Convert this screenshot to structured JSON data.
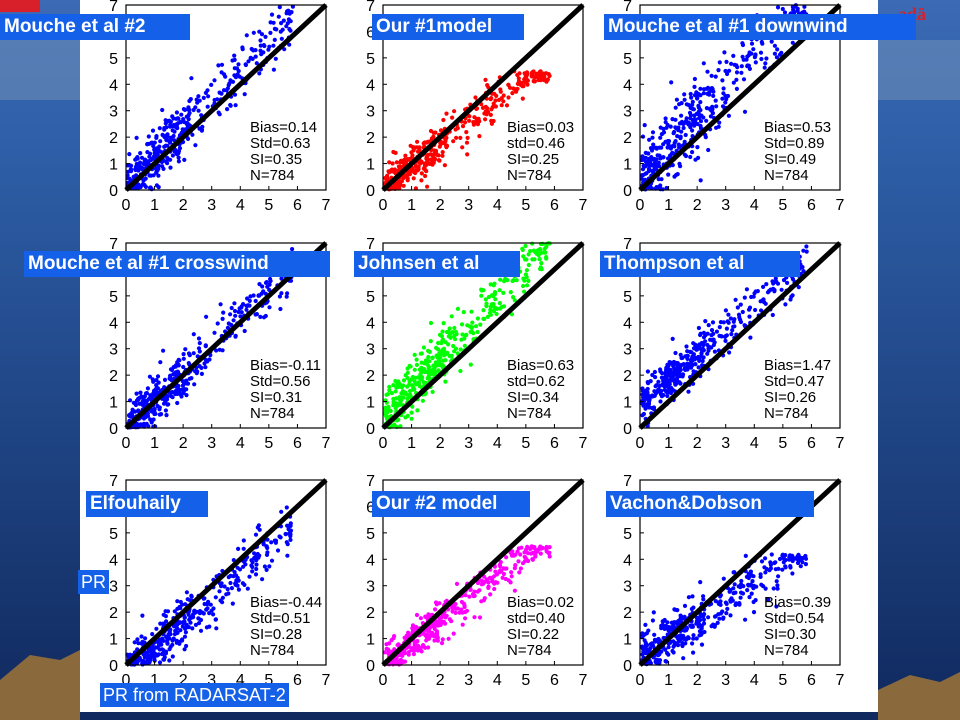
{
  "slide": {
    "colors": {
      "background_top": "#2e5fa8",
      "background_bottom": "#10295e",
      "land": "#8a6a3d",
      "panel": "#ffffff",
      "label_box": "#1560e8"
    },
    "partial_text_left": "PR",
    "xlabel_bottom": "PR from RADARSAT-2",
    "logo_fragment_right": "adä"
  },
  "chart_data": [
    {
      "type": "scatter",
      "title": "Mouche et al #2",
      "color": "#0000ff",
      "xlim": [
        0,
        7
      ],
      "ylim": [
        0,
        7
      ],
      "xticks": [
        "0",
        "1",
        "2",
        "3",
        "4",
        "5",
        "6",
        "7"
      ],
      "yticks": [
        "0",
        "1",
        "2",
        "3",
        "4",
        "5",
        "6",
        "7"
      ],
      "stats": [
        "Bias=0.14",
        "Std=0.63",
        "SI=0.35",
        "N=784"
      ],
      "bias": 0.14,
      "std": 0.63,
      "si": 0.35,
      "n": 784,
      "slope": 1.1,
      "yclip": 7
    },
    {
      "type": "scatter",
      "title": "Our #1model",
      "color": "#ff0000",
      "xlim": [
        0,
        7
      ],
      "ylim": [
        0,
        7
      ],
      "xticks": [
        "0",
        "1",
        "2",
        "3",
        "4",
        "5",
        "6",
        "7"
      ],
      "yticks": [
        "0",
        "1",
        "2",
        "3",
        "4",
        "5",
        "6",
        "7"
      ],
      "stats": [
        "Bias=0.03",
        "std=0.46",
        "SI=0.25",
        "N=784"
      ],
      "bias": 0.03,
      "std": 0.46,
      "si": 0.25,
      "n": 784,
      "slope": 0.88,
      "yclip": 4.5
    },
    {
      "type": "scatter",
      "title": "Mouche et al #1 downwind",
      "color": "#0000ff",
      "xlim": [
        0,
        7
      ],
      "ylim": [
        0,
        7
      ],
      "xticks": [
        "0",
        "1",
        "2",
        "3",
        "4",
        "5",
        "6",
        "7"
      ],
      "yticks": [
        "0",
        "1",
        "2",
        "3",
        "4",
        "5",
        "6",
        "7"
      ],
      "stats": [
        "Bias=0.53",
        "Std=0.89",
        "SI=0.49",
        "N=784"
      ],
      "bias": 0.53,
      "std": 0.89,
      "si": 0.49,
      "n": 784,
      "slope": 1.2,
      "yclip": 7
    },
    {
      "type": "scatter",
      "title": "Mouche et al #1 crosswind",
      "color": "#0000ff",
      "xlim": [
        0,
        7
      ],
      "ylim": [
        0,
        7
      ],
      "xticks": [
        "0",
        "1",
        "2",
        "3",
        "4",
        "5",
        "6",
        "7"
      ],
      "yticks": [
        "0",
        "1",
        "2",
        "3",
        "4",
        "5",
        "6",
        "7"
      ],
      "stats": [
        "Bias=-0.11",
        "Std=0.56",
        "SI=0.31",
        "N=784"
      ],
      "bias": -0.11,
      "std": 0.56,
      "si": 0.31,
      "n": 784,
      "slope": 1.05,
      "yclip": 7
    },
    {
      "type": "scatter",
      "title": "Johnsen et al",
      "color": "#00ff00",
      "xlim": [
        0,
        7
      ],
      "ylim": [
        0,
        7
      ],
      "xticks": [
        "0",
        "1",
        "2",
        "3",
        "4",
        "5",
        "6",
        "7"
      ],
      "yticks": [
        "0",
        "1",
        "2",
        "3",
        "4",
        "5",
        "6",
        "7"
      ],
      "stats": [
        "Bias=0.63",
        "std=0.62",
        "SI=0.34",
        "N=784"
      ],
      "bias": 0.63,
      "std": 0.62,
      "si": 0.34,
      "n": 784,
      "slope": 1.15,
      "yclip": 7
    },
    {
      "type": "scatter",
      "title": "Thompson et al",
      "color": "#0000ff",
      "xlim": [
        0,
        7
      ],
      "ylim": [
        0,
        7
      ],
      "xticks": [
        "0",
        "1",
        "2",
        "3",
        "4",
        "5",
        "6",
        "7"
      ],
      "yticks": [
        "0",
        "1",
        "2",
        "3",
        "4",
        "5",
        "6",
        "7"
      ],
      "stats": [
        "Bias=1.47",
        "Std=0.47",
        "SI=0.26",
        "N=784"
      ],
      "bias": 1.47,
      "std": 0.47,
      "si": 0.26,
      "n": 784,
      "slope": 0.92,
      "yclip": 7
    },
    {
      "type": "scatter",
      "title": "Elfouhaily",
      "color": "#0000ff",
      "xlim": [
        0,
        7
      ],
      "ylim": [
        0,
        7
      ],
      "xticks": [
        "0",
        "1",
        "2",
        "3",
        "4",
        "5",
        "6",
        "7"
      ],
      "yticks": [
        "0",
        "1",
        "2",
        "3",
        "4",
        "5",
        "6",
        "7"
      ],
      "stats": [
        "Bias=-0.44",
        "Std=0.51",
        "SI=0.28",
        "N=784"
      ],
      "bias": -0.44,
      "std": 0.51,
      "si": 0.28,
      "n": 784,
      "slope": 0.95,
      "yclip": 7
    },
    {
      "type": "scatter",
      "title": "Our #2 model",
      "color": "#ff00ff",
      "xlim": [
        0,
        7
      ],
      "ylim": [
        0,
        7
      ],
      "xticks": [
        "0",
        "1",
        "2",
        "3",
        "4",
        "5",
        "6",
        "7"
      ],
      "yticks": [
        "0",
        "1",
        "2",
        "3",
        "4",
        "5",
        "6",
        "7"
      ],
      "stats": [
        "Bias=0.02",
        "std=0.40",
        "SI=0.22",
        "N=784"
      ],
      "bias": 0.02,
      "std": 0.4,
      "si": 0.22,
      "n": 784,
      "slope": 0.85,
      "yclip": 4.5
    },
    {
      "type": "scatter",
      "title": "Vachon&Dobson",
      "color": "#0000ff",
      "xlim": [
        0,
        7
      ],
      "ylim": [
        0,
        7
      ],
      "xticks": [
        "0",
        "1",
        "2",
        "3",
        "4",
        "5",
        "6",
        "7"
      ],
      "yticks": [
        "0",
        "1",
        "2",
        "3",
        "4",
        "5",
        "6",
        "7"
      ],
      "stats": [
        "Bias=0.39",
        "Std=0.54",
        "SI=0.30",
        "N=784"
      ],
      "bias": 0.39,
      "std": 0.54,
      "si": 0.3,
      "n": 784,
      "slope": 0.75,
      "yclip": 4.2
    }
  ]
}
